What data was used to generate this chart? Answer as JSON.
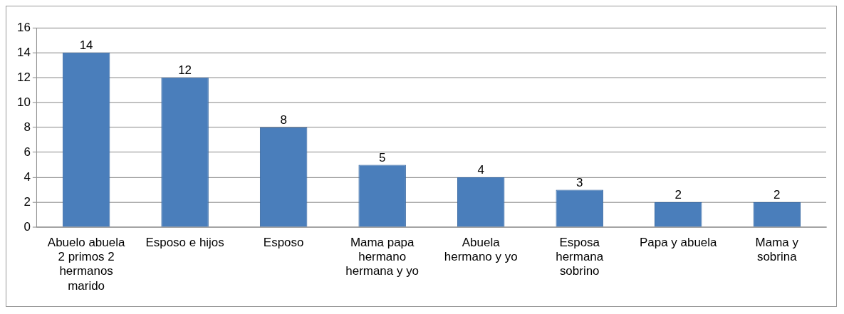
{
  "chart_data": {
    "type": "bar",
    "categories": [
      "Abuelo abuela 2 primos 2 hermanos marido",
      "Esposo e hijos",
      "Esposo",
      "Mama papa hermano hermana y yo",
      "Abuela hermano y yo",
      "Esposa hermana sobrino",
      "Papa y abuela",
      "Mama y sobrina"
    ],
    "values": [
      14,
      12,
      8,
      5,
      4,
      3,
      2,
      2
    ],
    "color": "#4a7ebb",
    "ylim": [
      0,
      16
    ],
    "yticks": [
      0,
      2,
      4,
      6,
      8,
      10,
      12,
      14,
      16
    ],
    "grid": "y",
    "data_labels": true,
    "legend": false
  }
}
